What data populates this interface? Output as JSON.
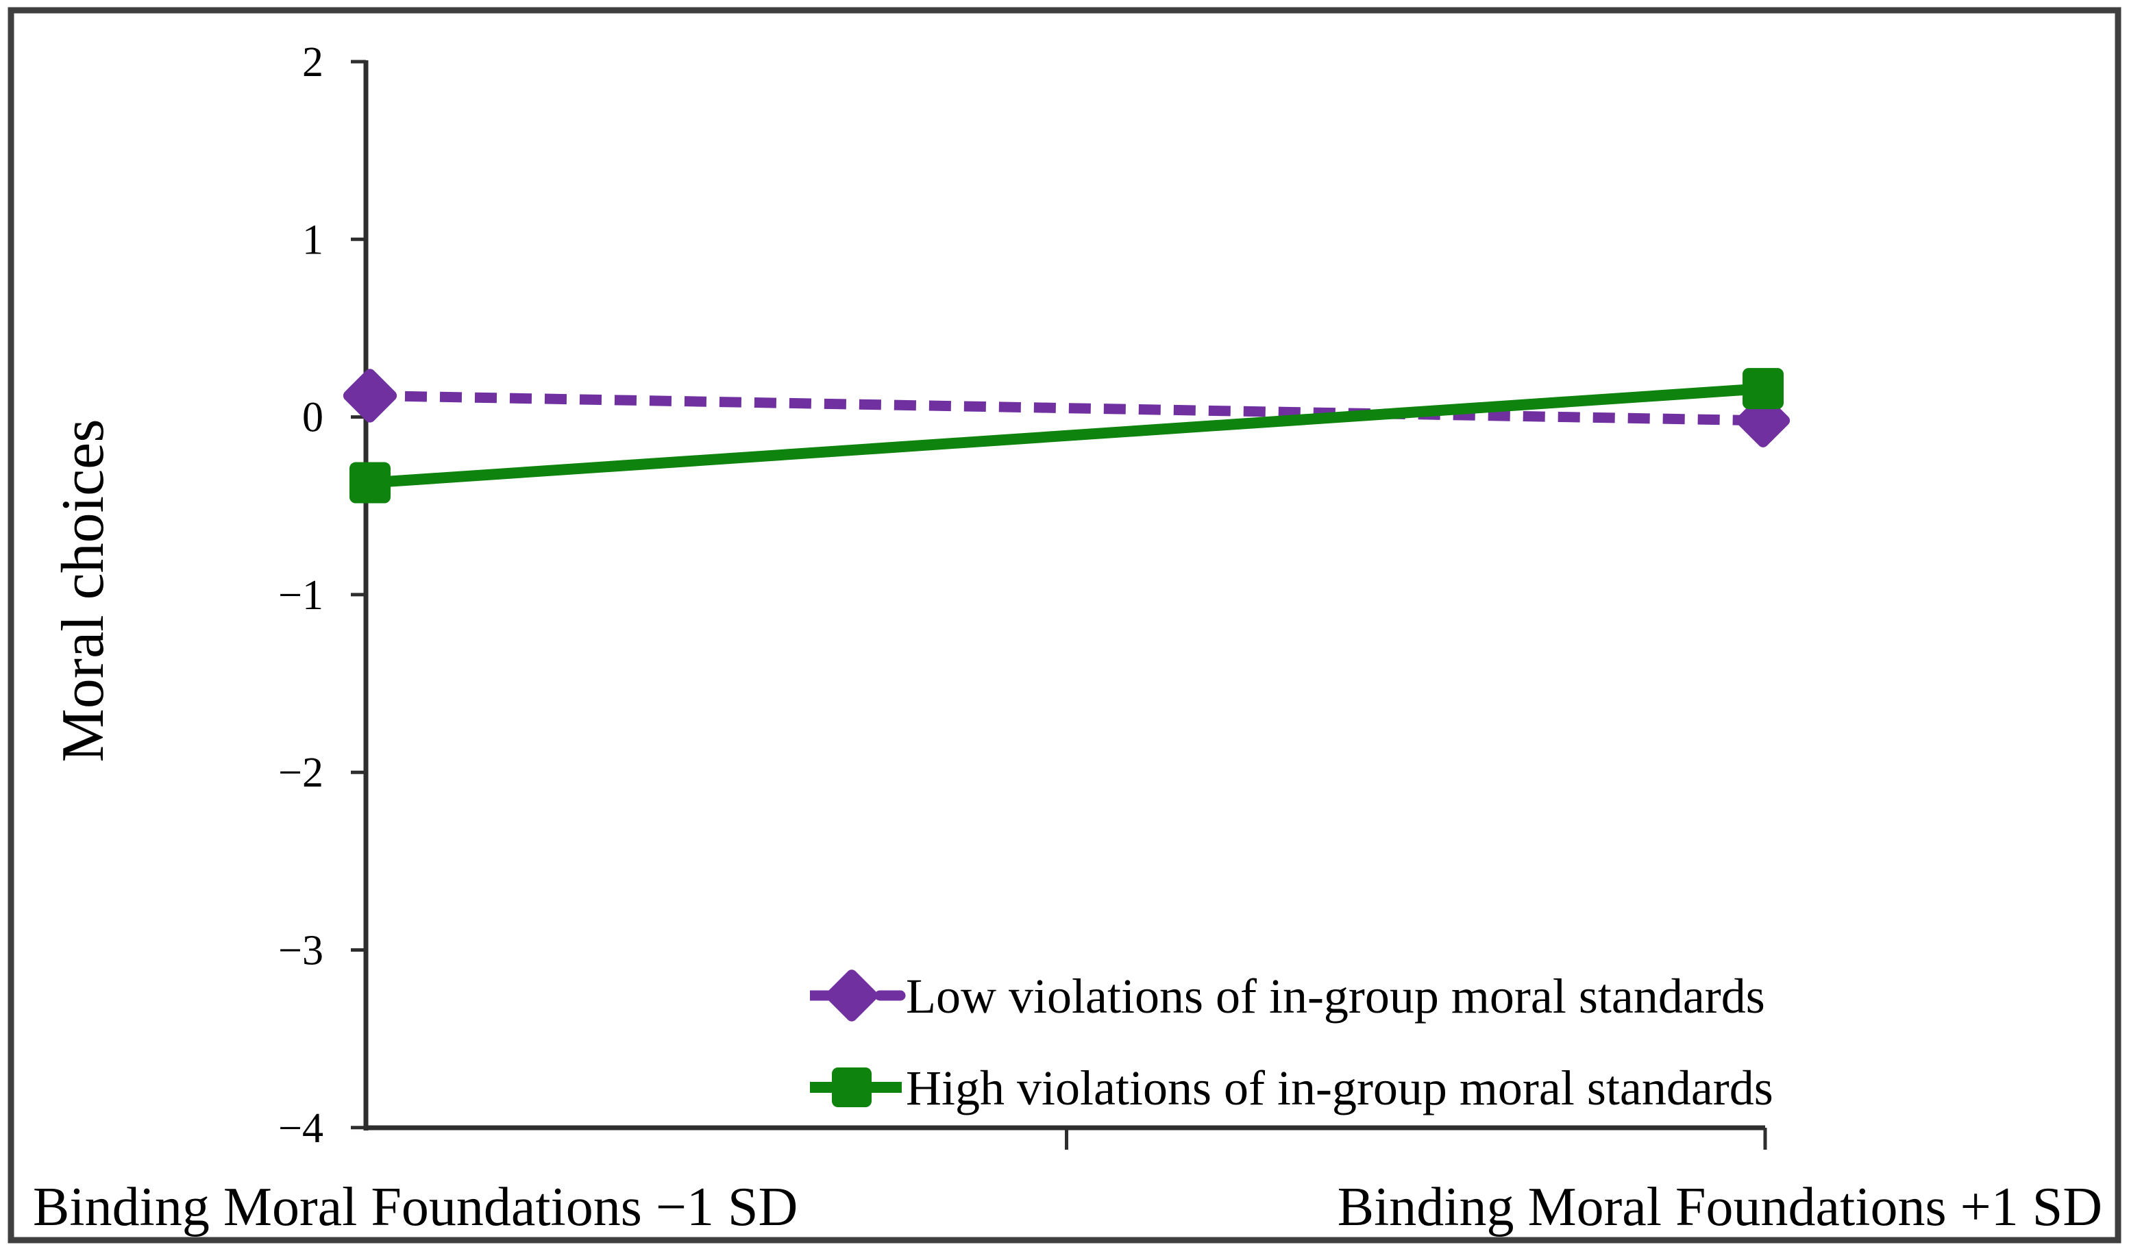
{
  "figure": {
    "background": "#ffffff",
    "border_color": "#3F3F3F"
  },
  "chart_data": {
    "type": "line",
    "title": "",
    "xlabel": "",
    "ylabel": "Moral choices",
    "categories": [
      "Binding Moral Foundations −1 SD",
      "Binding Moral Foundations +1 SD"
    ],
    "series": [
      {
        "name": "Low violations of in-group moral standards",
        "values": [
          0.12,
          -0.02
        ],
        "color": "#7030A0",
        "line_style": "dashed",
        "marker": "diamond"
      },
      {
        "name": "High violations of in-group moral standards",
        "values": [
          -0.37,
          0.16
        ],
        "color": "#0E830E",
        "line_style": "solid",
        "marker": "square"
      }
    ],
    "ylim": [
      -4,
      2
    ],
    "yticks": [
      {
        "value": 2,
        "label": "2"
      },
      {
        "value": 1,
        "label": "1"
      },
      {
        "value": 0,
        "label": "0"
      },
      {
        "value": -1,
        "label": "−1"
      },
      {
        "value": -2,
        "label": "−2"
      },
      {
        "value": -3,
        "label": "−3"
      },
      {
        "value": -4,
        "label": "−4"
      }
    ],
    "grid": false,
    "legend_position": "inside-bottom-center",
    "axis_color": "#2E2E2E",
    "text_color": "#000000"
  }
}
